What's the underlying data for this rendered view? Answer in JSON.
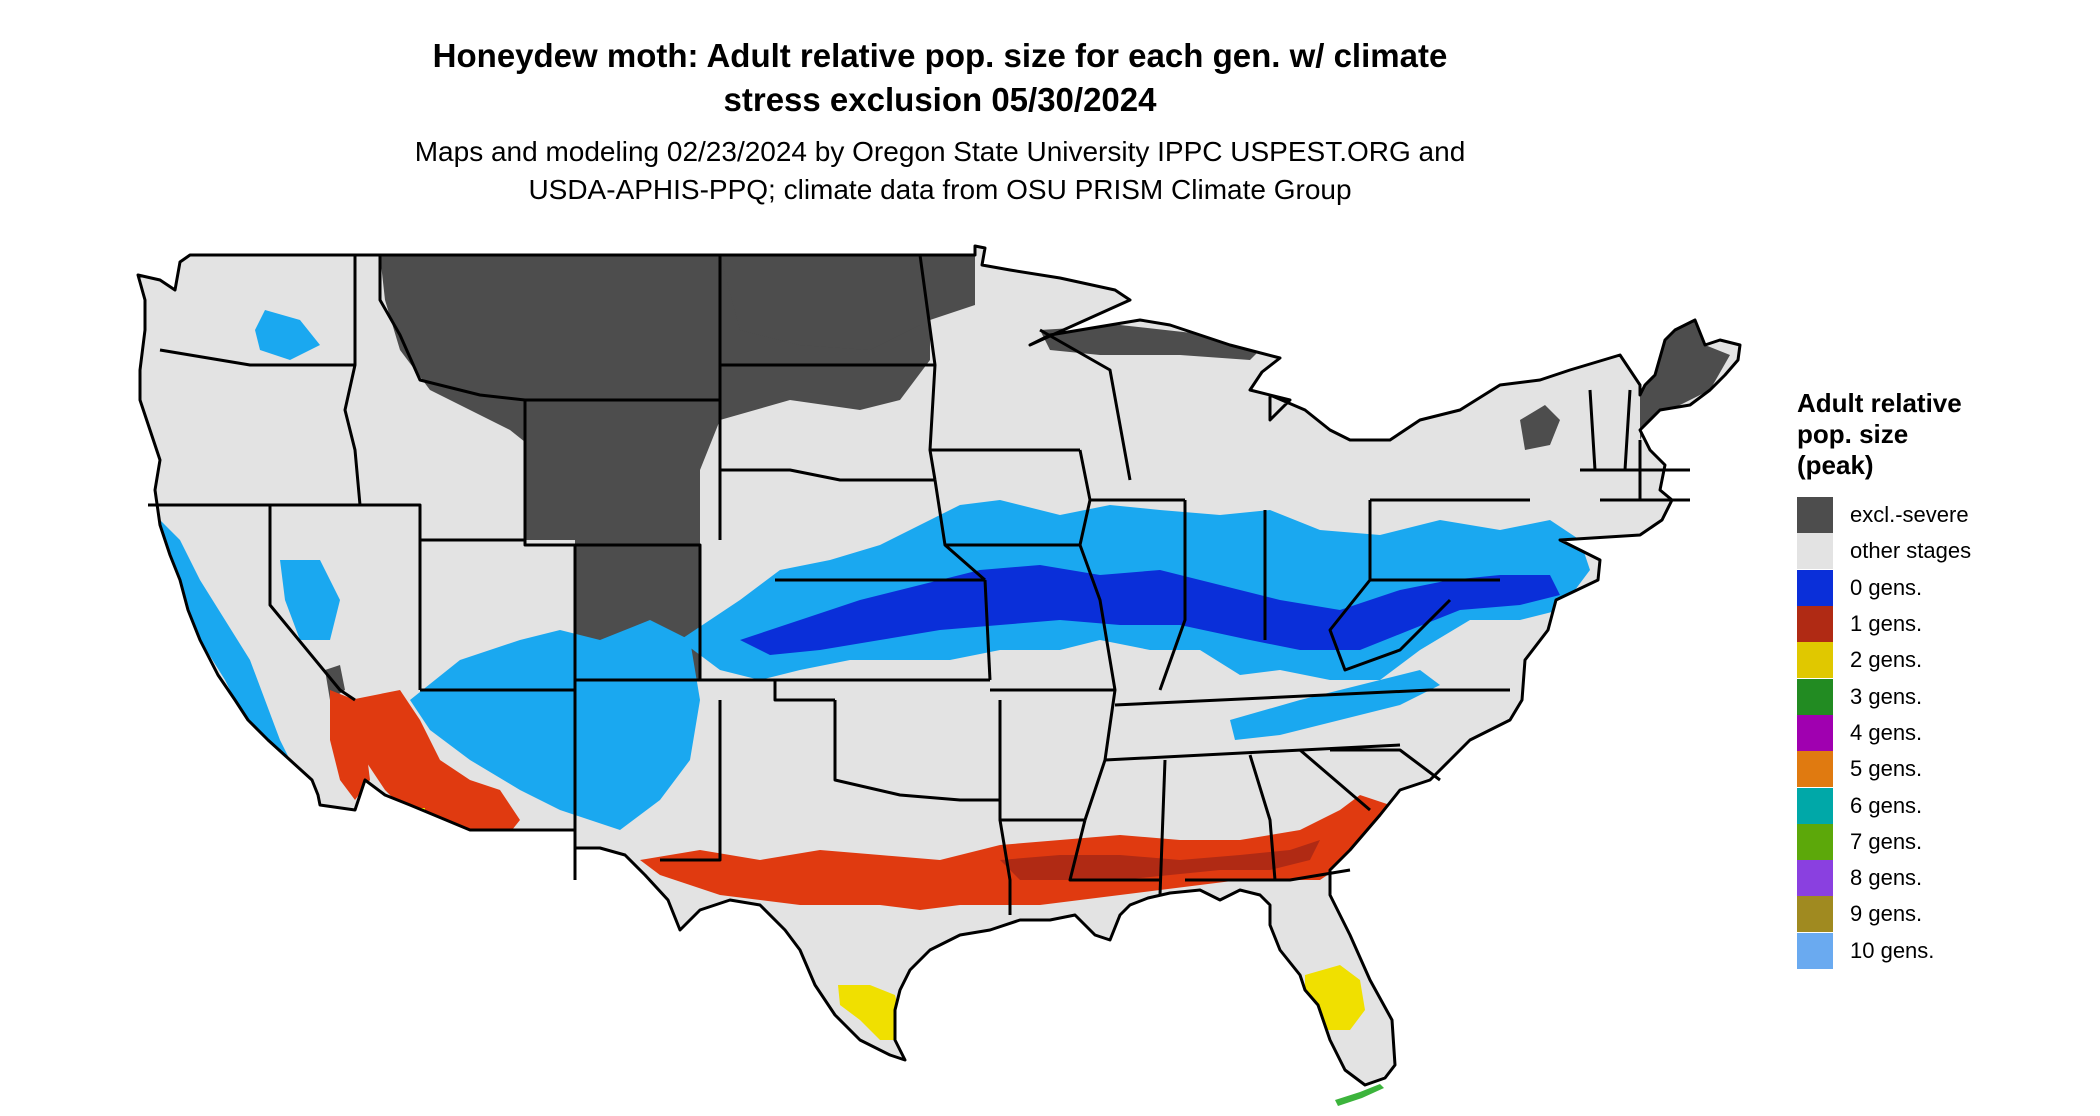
{
  "title": {
    "line1": "Honeydew moth: Adult relative pop. size for each gen. w/ climate",
    "line2": "stress exclusion 05/30/2024"
  },
  "subtitle": {
    "line1": "Maps and modeling 02/23/2024 by Oregon State University IPPC USPEST.ORG and",
    "line2": "USDA-APHIS-PPQ; climate data from OSU PRISM Climate Group"
  },
  "legend": {
    "title_lines": [
      "Adult relative",
      "pop. size",
      "(peak)"
    ],
    "items": [
      {
        "label": "excl.-severe",
        "color": "#4d4d4d"
      },
      {
        "label": "other stages",
        "color": "#e3e3e3"
      },
      {
        "label": "0 gens.",
        "color": "#0a2fd9"
      },
      {
        "label": "1 gens.",
        "color": "#b02a14"
      },
      {
        "label": "2 gens.",
        "color": "#e0c800"
      },
      {
        "label": "3 gens.",
        "color": "#228b22"
      },
      {
        "label": "4 gens.",
        "color": "#a000b0"
      },
      {
        "label": "5 gens.",
        "color": "#e07a10"
      },
      {
        "label": "6 gens.",
        "color": "#00a8a8"
      },
      {
        "label": "7 gens.",
        "color": "#5ca80a"
      },
      {
        "label": "8 gens.",
        "color": "#8a40e0"
      },
      {
        "label": "9 gens.",
        "color": "#a08a20"
      },
      {
        "label": "10 gens.",
        "color": "#6aaaf0"
      }
    ]
  },
  "map_colors": {
    "land": "#e3e3e3",
    "excluded": "#4d4d4d",
    "zero_gens_light": "#1aa8f0",
    "zero_gens_dark": "#0a2fd9",
    "one_gen": "#e03a10",
    "one_gen_dark": "#b02a14",
    "two_gens": "#f0e000",
    "three_gens": "#3cb43c",
    "border": "#000000"
  }
}
